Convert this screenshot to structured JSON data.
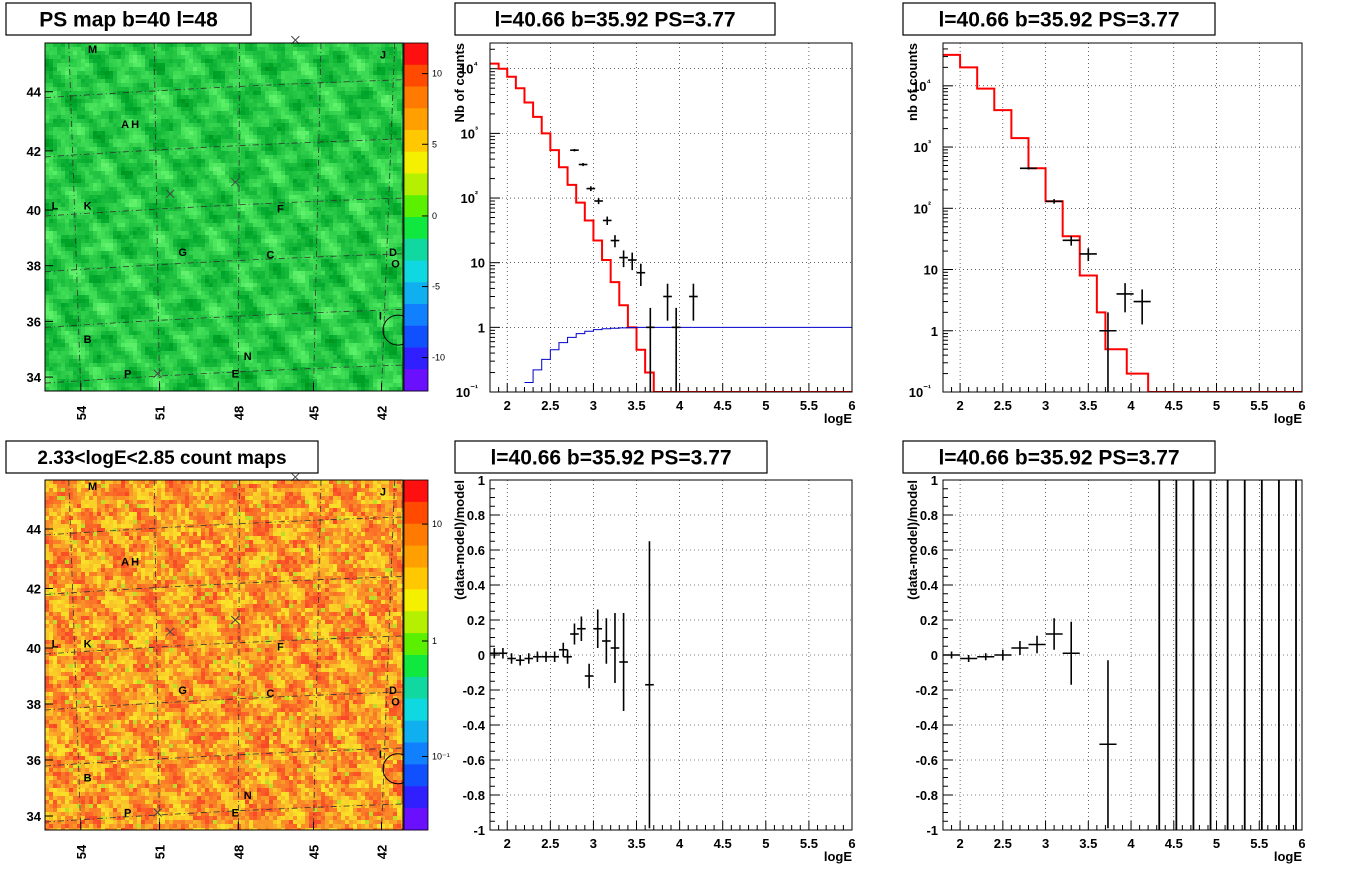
{
  "chart_data": [
    {
      "id": "psmap",
      "type": "heatmap",
      "title": "PS map b=40 l=48",
      "x_ticks": [
        "54",
        "51",
        "48",
        "45",
        "42"
      ],
      "y_ticks": [
        "44",
        "42",
        "40",
        "38",
        "36",
        "34"
      ],
      "xlim": [
        55.5,
        41.2
      ],
      "ylim": [
        33.8,
        45.8
      ],
      "colorbar_ticks": [
        "10",
        "5",
        "0",
        "-5",
        "-10"
      ],
      "colorbar_range": [
        -13,
        13
      ],
      "markers": [
        {
          "label": "M",
          "lon": 53.6,
          "lat": 45.6
        },
        {
          "label": "J",
          "lon": 42.0,
          "lat": 45.4
        },
        {
          "label": "A",
          "lon": 52.3,
          "lat": 43.0
        },
        {
          "label": "H",
          "lon": 51.9,
          "lat": 43.0
        },
        {
          "label": "L",
          "lon": 55.1,
          "lat": 40.2
        },
        {
          "label": "K",
          "lon": 53.8,
          "lat": 40.2
        },
        {
          "label": "F",
          "lon": 46.1,
          "lat": 40.1
        },
        {
          "label": "G",
          "lon": 50.0,
          "lat": 38.6
        },
        {
          "label": "C",
          "lon": 46.5,
          "lat": 38.5
        },
        {
          "label": "D",
          "lon": 41.6,
          "lat": 38.6
        },
        {
          "label": "O",
          "lon": 41.5,
          "lat": 38.2
        },
        {
          "label": "I",
          "lon": 42.1,
          "lat": 36.4
        },
        {
          "label": "B",
          "lon": 53.8,
          "lat": 35.6
        },
        {
          "label": "N",
          "lon": 47.4,
          "lat": 35.0
        },
        {
          "label": "P",
          "lon": 52.2,
          "lat": 34.4
        },
        {
          "label": "E",
          "lon": 47.9,
          "lat": 34.4
        }
      ],
      "crosses": [
        {
          "lon": 45.5,
          "lat": 45.9
        },
        {
          "lon": 50.5,
          "lat": 40.6
        },
        {
          "lon": 47.9,
          "lat": 41.0
        },
        {
          "lon": 51.0,
          "lat": 34.4
        }
      ],
      "circle": {
        "lon": 41.4,
        "lat": 35.9
      }
    },
    {
      "id": "cmap",
      "type": "heatmap",
      "title": "2.33<logE<2.85 count maps",
      "x_ticks": [
        "54",
        "51",
        "48",
        "45",
        "42"
      ],
      "y_ticks": [
        "44",
        "42",
        "40",
        "38",
        "36",
        "34"
      ],
      "colorbar_ticks": [
        "10",
        "1",
        "10⁻¹"
      ],
      "scale": "log"
    },
    {
      "id": "spec1",
      "type": "line",
      "title": "l=40.66 b=35.92 PS=3.77",
      "xlabel": "logE",
      "ylabel": "Nb of counts",
      "xlim": [
        1.8,
        6.0
      ],
      "ylim": [
        0.1,
        25000
      ],
      "yscale": "log",
      "grid": true,
      "x_ticks": [
        "2",
        "2.5",
        "3",
        "3.5",
        "4",
        "4.5",
        "5",
        "5.5",
        "6"
      ],
      "y_ticks": [
        "10⁴",
        "10³",
        "10²",
        "10",
        "1",
        "10⁻¹"
      ],
      "series": [
        {
          "color": "#ff0000",
          "step_edges": [
            1.8,
            1.9,
            2.0,
            2.1,
            2.2,
            2.3,
            2.4,
            2.5,
            2.6,
            2.7,
            2.8,
            2.9,
            3.0,
            3.1,
            3.2,
            3.3,
            3.4,
            3.5,
            3.6,
            3.7,
            3.8,
            3.9,
            4.0,
            4.1,
            4.2,
            4.3,
            4.4,
            4.5,
            4.6,
            4.7,
            4.8,
            4.9,
            5.0,
            5.1,
            5.2,
            5.3,
            5.4,
            5.5,
            5.6,
            5.7,
            5.8,
            5.9,
            6.0
          ],
          "step_values": [
            12000,
            10000,
            7500,
            5000,
            3000,
            1800,
            1000,
            550,
            300,
            160,
            85,
            45,
            22,
            11,
            5,
            2.2,
            1.0,
            0.45,
            0.2,
            0.1,
            0.1,
            0.1,
            0.1,
            0.1,
            0.1,
            0.1,
            0.1,
            0.1,
            0.1,
            0.1,
            0.1,
            0.1,
            0.1,
            0.1,
            0.1,
            0.1,
            0.1,
            0.1,
            0.1,
            0.1,
            0.1,
            0.1
          ]
        },
        {
          "color": "#0000cc",
          "step_edges": [
            2.2,
            2.3,
            2.4,
            2.5,
            2.6,
            2.7,
            2.8,
            2.9,
            3.0,
            3.1,
            3.2,
            3.3,
            3.4,
            3.5,
            3.6,
            3.7,
            3.8,
            3.9,
            4.0,
            4.1,
            4.2,
            4.3,
            4.4,
            4.5,
            4.6,
            4.7,
            4.8,
            4.9,
            5.0,
            5.1,
            5.2,
            5.3,
            5.4,
            5.5,
            5.6,
            5.7,
            5.8,
            5.9,
            6.0
          ],
          "step_values": [
            0.14,
            0.22,
            0.32,
            0.45,
            0.58,
            0.7,
            0.8,
            0.87,
            0.92,
            0.95,
            0.97,
            0.98,
            0.99,
            1,
            1,
            1,
            1,
            1,
            1,
            1,
            1,
            1,
            1,
            1,
            1,
            1,
            1,
            1,
            1,
            1,
            1,
            1,
            1,
            1,
            1,
            1,
            1,
            1
          ]
        },
        {
          "color": "#000000",
          "type": "errorbar",
          "points": [
            [
              2.78,
              550
            ],
            [
              2.88,
              330
            ],
            [
              2.97,
              140
            ],
            [
              3.06,
              90
            ],
            [
              3.16,
              45
            ],
            [
              3.25,
              22
            ],
            [
              3.35,
              12
            ],
            [
              3.45,
              11
            ],
            [
              3.55,
              7
            ],
            [
              3.66,
              1
            ],
            [
              3.86,
              3
            ],
            [
              3.96,
              1
            ],
            [
              4.16,
              3
            ]
          ],
          "xerr": 0.05
        }
      ]
    },
    {
      "id": "spec2",
      "type": "line",
      "title": "l=40.66 b=35.92 PS=3.77",
      "xlabel": "logE",
      "ylabel": "nb of counts",
      "xlim": [
        1.8,
        6.0
      ],
      "ylim": [
        0.1,
        50000
      ],
      "yscale": "log",
      "grid": true,
      "x_ticks": [
        "2",
        "2.5",
        "3",
        "3.5",
        "4",
        "4.5",
        "5",
        "5.5",
        "6"
      ],
      "y_ticks": [
        "10⁴",
        "10³",
        "10²",
        "10",
        "1",
        "10⁻¹"
      ],
      "series": [
        {
          "color": "#ff0000",
          "step_edges": [
            1.8,
            2.0,
            2.2,
            2.4,
            2.6,
            2.8,
            3.0,
            3.2,
            3.4,
            3.6,
            3.8,
            4.0,
            4.2,
            4.4,
            4.6,
            4.8,
            5.0,
            5.2,
            5.4,
            5.6,
            5.8,
            6.0
          ],
          "step_values": [
            32000,
            20000,
            9000,
            4000,
            1400,
            450,
            130,
            35,
            8,
            2,
            0.5,
            0.2,
            0.1,
            0.1,
            0.1,
            0.1,
            0.1,
            0.1,
            0.1,
            0.1,
            0.1
          ],
          "steps": [
            [
              1.8,
              32000
            ],
            [
              2.0,
              20000
            ],
            [
              2.2,
              9000
            ],
            [
              2.4,
              4000
            ],
            [
              2.6,
              1400
            ],
            [
              2.8,
              450
            ],
            [
              3.0,
              130
            ],
            [
              3.2,
              35
            ],
            [
              3.4,
              8
            ],
            [
              3.6,
              2
            ],
            [
              3.7,
              0.5
            ],
            [
              3.95,
              0.2
            ],
            [
              4.2,
              0.1
            ],
            [
              6.0,
              0.1
            ]
          ]
        },
        {
          "color": "#000000",
          "type": "errorbar",
          "points": [
            [
              2.8,
              450
            ],
            [
              3.1,
              130
            ],
            [
              3.3,
              30
            ],
            [
              3.5,
              18
            ],
            [
              3.73,
              1
            ],
            [
              3.93,
              4
            ],
            [
              4.13,
              3
            ]
          ],
          "xerr": 0.1
        }
      ]
    },
    {
      "id": "resid1",
      "type": "scatter",
      "title": "l=40.66 b=35.92 PS=3.77",
      "xlabel": "logE",
      "ylabel": "(data-model)/model",
      "xlim": [
        1.8,
        6.0
      ],
      "ylim": [
        -1,
        1
      ],
      "grid": true,
      "x_ticks": [
        "2",
        "2.5",
        "3",
        "3.5",
        "4",
        "4.5",
        "5",
        "5.5",
        "6"
      ],
      "y_ticks": [
        "1",
        "0.8",
        "0.6",
        "0.4",
        "0.2",
        "0",
        "-0.2",
        "-0.4",
        "-0.6",
        "-0.8",
        "-1"
      ],
      "series": [
        {
          "color": "#000000",
          "type": "errorbar",
          "points": [
            [
              1.85,
              0.01,
              0.03
            ],
            [
              1.95,
              0.01,
              0.03
            ],
            [
              2.05,
              -0.02,
              0.03
            ],
            [
              2.15,
              -0.03,
              0.03
            ],
            [
              2.25,
              -0.02,
              0.03
            ],
            [
              2.35,
              -0.01,
              0.03
            ],
            [
              2.45,
              -0.01,
              0.03
            ],
            [
              2.55,
              -0.01,
              0.03
            ],
            [
              2.65,
              0.03,
              0.04
            ],
            [
              2.7,
              -0.01,
              0.04
            ],
            [
              2.78,
              0.12,
              0.06
            ],
            [
              2.86,
              0.15,
              0.07
            ],
            [
              2.95,
              -0.12,
              0.07
            ],
            [
              3.05,
              0.15,
              0.11
            ],
            [
              3.15,
              0.08,
              0.13
            ],
            [
              3.25,
              0.04,
              0.2
            ],
            [
              3.35,
              -0.04,
              0.28
            ],
            [
              3.65,
              -0.17,
              0.82
            ]
          ],
          "xerr": 0.05
        }
      ]
    },
    {
      "id": "resid2",
      "type": "scatter",
      "title": "l=40.66 b=35.92 PS=3.77",
      "xlabel": "logE",
      "ylabel": "(data-model)/model",
      "xlim": [
        1.8,
        6.0
      ],
      "ylim": [
        -1,
        1
      ],
      "grid": true,
      "x_ticks": [
        "2",
        "2.5",
        "3",
        "3.5",
        "4",
        "4.5",
        "5",
        "5.5",
        "6"
      ],
      "y_ticks": [
        "1",
        "0.8",
        "0.6",
        "0.4",
        "0.2",
        "0",
        "-0.2",
        "-0.4",
        "-0.6",
        "-0.8",
        "-1"
      ],
      "series": [
        {
          "color": "#000000",
          "type": "errorbar",
          "points": [
            [
              1.9,
              0.0,
              0.02
            ],
            [
              2.1,
              -0.02,
              0.02
            ],
            [
              2.3,
              -0.01,
              0.02
            ],
            [
              2.5,
              0.0,
              0.03
            ],
            [
              2.7,
              0.04,
              0.04
            ],
            [
              2.9,
              0.06,
              0.05
            ],
            [
              3.1,
              0.12,
              0.09
            ],
            [
              3.3,
              0.01,
              0.18
            ],
            [
              3.73,
              -0.51,
              0.48
            ]
          ],
          "xerr": 0.1
        },
        {
          "color": "#000000",
          "type": "vlines",
          "x": [
            4.33,
            4.53,
            4.73,
            4.93,
            5.13,
            5.33,
            5.53,
            5.73,
            5.93
          ]
        }
      ]
    }
  ]
}
